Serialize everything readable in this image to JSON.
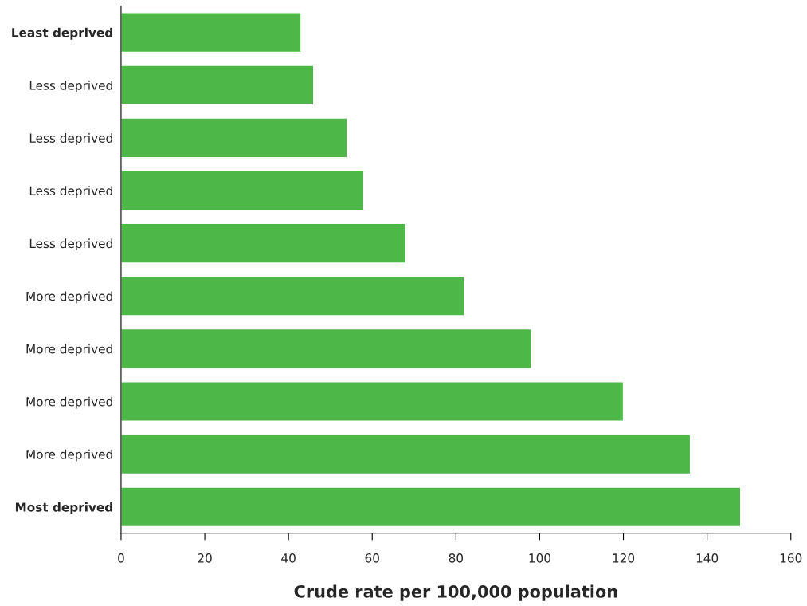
{
  "chart_data": {
    "type": "bar",
    "orientation": "horizontal",
    "categories": [
      "Least deprived",
      "Less deprived",
      "Less deprived",
      "Less deprived",
      "Less deprived",
      "More deprived",
      "More deprived",
      "More deprived",
      "More deprived",
      "Most deprived"
    ],
    "values": [
      43,
      46,
      54,
      58,
      68,
      82,
      98,
      120,
      136,
      148
    ],
    "color": "#4db848",
    "xlabel": "Crude rate per 100,000 population",
    "xlim": [
      0,
      160
    ],
    "xticks": [
      0,
      20,
      40,
      60,
      80,
      100,
      120,
      140,
      160
    ],
    "grid": false,
    "legend": false
  }
}
